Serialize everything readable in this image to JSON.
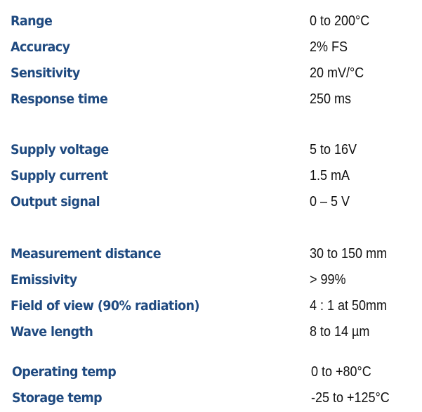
{
  "groups": [
    {
      "rows": [
        {
          "label": "Range",
          "value": "0 to 200°C"
        },
        {
          "label": "Accuracy",
          "value": "2% FS"
        },
        {
          "label": "Sensitivity",
          "value": "20 mV/°C"
        },
        {
          "label": "Response time",
          "value": "250 ms"
        }
      ]
    },
    {
      "rows": [
        {
          "label": "Supply voltage",
          "value": "5 to 16V"
        },
        {
          "label": "Supply current",
          "value": "1.5 mA"
        },
        {
          "label": "Output signal",
          "value": "0 – 5 V"
        }
      ]
    },
    {
      "rows": [
        {
          "label": "Measurement distance",
          "value": "30 to 150 mm"
        },
        {
          "label": "Emissivity",
          "value": "> 99%"
        },
        {
          "label": "Field of view (90% radiation)",
          "value": "4 : 1 at 50mm"
        },
        {
          "label": "Wave length",
          "value": "8 to 14 µm"
        }
      ]
    },
    {
      "rows": [
        {
          "label": "Operating temp",
          "value": "0 to +80°C"
        },
        {
          "label": "Storage temp",
          "value": "-25 to +125°C"
        }
      ]
    }
  ],
  "colors": {
    "label": "#1f4a80",
    "value": "#111111"
  }
}
